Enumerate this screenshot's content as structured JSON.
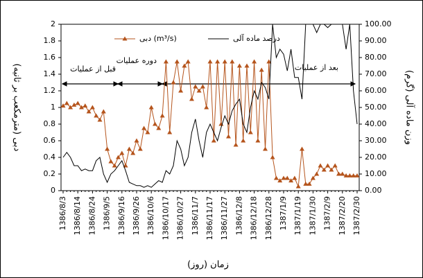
{
  "chart_data": {
    "type": "line",
    "x_label": "زمان (روز)",
    "y_label": "دبی (مترمکعب بر ثانیه)",
    "y2_label": "وزن ماده آلی (گرم)",
    "annotations": [
      "قبل از عملیات",
      "دوره عملیات",
      "بعد از عملیات"
    ],
    "categories": [
      "1386/8/3",
      null,
      null,
      null,
      "1386/8/14",
      null,
      null,
      null,
      "1386/8/24",
      null,
      null,
      null,
      "1386/9/5",
      null,
      null,
      null,
      "1386/9/16",
      null,
      null,
      null,
      "1386/9/26",
      null,
      null,
      null,
      "1386/10/6",
      null,
      null,
      null,
      "1386/10/17",
      null,
      null,
      null,
      "1386/10/27",
      null,
      null,
      null,
      "1386/11/7",
      null,
      null,
      null,
      "1386/11/17",
      null,
      null,
      null,
      "1386/11/27",
      null,
      null,
      null,
      "1386/12/8",
      null,
      null,
      null,
      "1386/12/18",
      null,
      null,
      null,
      "1386/12/28",
      null,
      null,
      null,
      "1387/1/9",
      null,
      null,
      null,
      "1387/1/19",
      null,
      null,
      null,
      "1387/1/30",
      null,
      null,
      null,
      "1387/2/9",
      null,
      null,
      null,
      "1387/2/20",
      null,
      null,
      null,
      "1387/2/30"
    ],
    "series": [
      {
        "name": "دبی (m³/s)",
        "color": "#b5541c",
        "marker": "triangle",
        "values": [
          1.02,
          1.05,
          1.0,
          1.03,
          1.05,
          1.0,
          1.02,
          0.95,
          1.0,
          0.9,
          0.85,
          0.95,
          0.5,
          0.35,
          0.3,
          0.4,
          0.45,
          0.3,
          0.5,
          0.45,
          0.6,
          0.5,
          0.75,
          0.7,
          1.0,
          0.8,
          0.75,
          0.9,
          1.55,
          0.7,
          1.3,
          1.55,
          1.2,
          1.5,
          1.55,
          1.1,
          1.25,
          1.2,
          1.25,
          1.0,
          1.55,
          0.6,
          1.55,
          0.8,
          1.55,
          0.65,
          1.55,
          0.55,
          1.5,
          0.6,
          1.5,
          0.7,
          1.55,
          0.6,
          1.45,
          0.5,
          1.55,
          0.4,
          0.15,
          0.12,
          0.15,
          0.15,
          0.12,
          0.15,
          0.05,
          0.5,
          0.08,
          0.08,
          0.15,
          0.2,
          0.3,
          0.25,
          0.3,
          0.25,
          0.3,
          0.2,
          0.2,
          0.18,
          0.18,
          0.18,
          0.18
        ]
      },
      {
        "name": "درصد ماده آلی",
        "color": "#000000",
        "axis": "y2",
        "values": [
          20,
          23,
          20,
          15,
          15,
          12,
          13,
          12,
          12,
          18,
          20,
          10,
          5,
          10,
          12,
          15,
          18,
          12,
          5,
          4,
          3,
          3,
          2,
          3,
          2,
          4,
          6,
          5,
          12,
          10,
          15,
          30,
          25,
          15,
          20,
          35,
          43,
          30,
          20,
          35,
          40,
          35,
          30,
          38,
          45,
          40,
          48,
          52,
          55,
          40,
          35,
          50,
          60,
          55,
          65,
          62,
          55,
          100,
          80,
          85,
          82,
          72,
          85,
          68,
          68,
          55,
          100,
          100,
          100,
          95,
          100,
          100,
          98,
          100,
          100,
          100,
          100,
          85,
          100,
          60,
          40
        ]
      }
    ],
    "ylim": [
      0,
      2
    ],
    "yticks": [
      0,
      0.2,
      0.4,
      0.6,
      0.8,
      1,
      1.2,
      1.4,
      1.6,
      1.8,
      2
    ],
    "y2lim": [
      0,
      100
    ],
    "y2ticks": [
      {
        "value": 0,
        "label": "0.00"
      },
      {
        "value": 10,
        "label": "10.00"
      },
      {
        "value": 20,
        "label": "20.00"
      },
      {
        "value": 30,
        "label": "30.00"
      },
      {
        "value": 40,
        "label": "40.00"
      },
      {
        "value": 50,
        "label": "50.00"
      },
      {
        "value": 60,
        "label": "60.00"
      },
      {
        "value": 70,
        "label": "70.00"
      },
      {
        "value": 80,
        "label": "80.00"
      },
      {
        "value": 90,
        "label": "90.00"
      },
      {
        "value": 100,
        "label": "100.00"
      }
    ]
  }
}
